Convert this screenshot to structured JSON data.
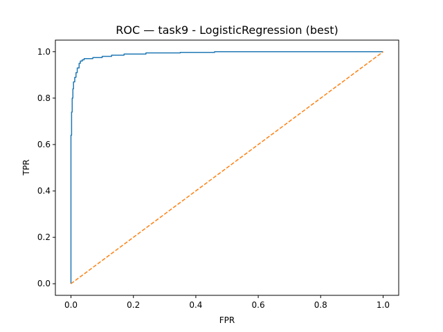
{
  "chart_data": {
    "type": "line",
    "title": "ROC — task9 - LogisticRegression (best)",
    "xlabel": "FPR",
    "ylabel": "TPR",
    "xlim": [
      -0.05,
      1.05
    ],
    "ylim": [
      -0.05,
      1.05
    ],
    "xticks": [
      "0.0",
      "0.2",
      "0.4",
      "0.6",
      "0.8",
      "1.0"
    ],
    "yticks": [
      "0.0",
      "0.2",
      "0.4",
      "0.6",
      "0.8",
      "1.0"
    ],
    "grid": false,
    "series": [
      {
        "color": "#1f77b4",
        "style": "solid",
        "x": [
          0.0,
          0.0,
          0.002,
          0.002,
          0.004,
          0.004,
          0.006,
          0.006,
          0.008,
          0.008,
          0.012,
          0.012,
          0.016,
          0.016,
          0.02,
          0.02,
          0.026,
          0.026,
          0.03,
          0.03,
          0.036,
          0.036,
          0.042,
          0.042,
          0.07,
          0.07,
          0.1,
          0.1,
          0.13,
          0.13,
          0.17,
          0.17,
          0.24,
          0.24,
          0.35,
          0.35,
          0.46,
          0.46,
          1.0
        ],
        "y": [
          0.0,
          0.64,
          0.64,
          0.74,
          0.74,
          0.8,
          0.8,
          0.84,
          0.84,
          0.87,
          0.87,
          0.89,
          0.89,
          0.91,
          0.91,
          0.93,
          0.93,
          0.95,
          0.95,
          0.96,
          0.96,
          0.965,
          0.965,
          0.97,
          0.97,
          0.975,
          0.975,
          0.98,
          0.98,
          0.985,
          0.985,
          0.99,
          0.99,
          0.995,
          0.995,
          0.997,
          0.997,
          1.0,
          1.0
        ]
      },
      {
        "color": "#ff7f0e",
        "style": "dashed",
        "x": [
          0.0,
          1.0
        ],
        "y": [
          0.0,
          1.0
        ]
      }
    ]
  }
}
